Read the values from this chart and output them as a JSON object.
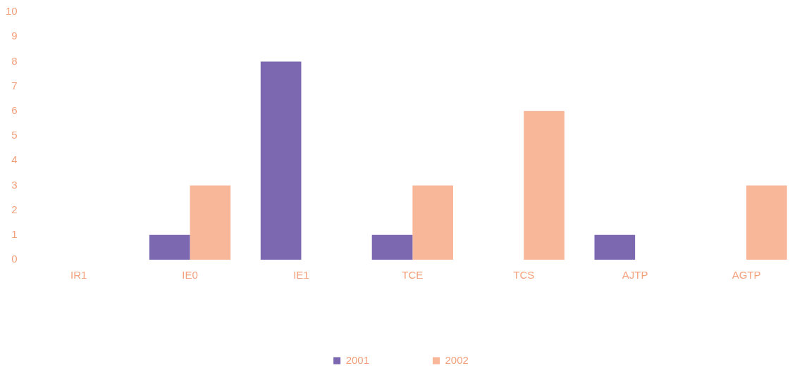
{
  "chart_data": {
    "type": "bar",
    "categories": [
      "IR1",
      "IE0",
      "IE1",
      "TCE",
      "TCS",
      "AJTP",
      "AGTP"
    ],
    "series": [
      {
        "name": "2001",
        "color": "#7b68b0",
        "values": [
          null,
          1,
          8,
          1,
          null,
          1,
          null
        ]
      },
      {
        "name": "2002",
        "color": "#f9b79a",
        "values": [
          null,
          3,
          null,
          3,
          6,
          null,
          3
        ]
      }
    ],
    "ylim": [
      0,
      10
    ],
    "yticks": [
      0,
      1,
      2,
      3,
      4,
      5,
      6,
      7,
      8,
      9,
      10
    ],
    "grid": false,
    "legend": "bottom"
  }
}
